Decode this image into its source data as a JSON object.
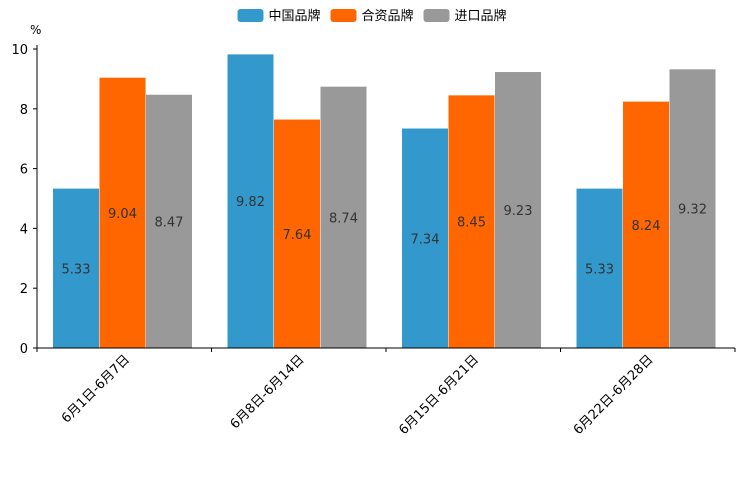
{
  "chart_data": {
    "type": "bar",
    "title": "",
    "xlabel": "",
    "ylabel": "%",
    "ylim": [
      0,
      10
    ],
    "yticks": [
      0,
      2,
      4,
      6,
      8,
      10
    ],
    "grid": false,
    "legend_position": "top-center",
    "categories": [
      "6月1日-6月7日",
      "6月8日-6月14日",
      "6月15日-6月21日",
      "6月22日-6月28日"
    ],
    "series": [
      {
        "name": "中国品牌",
        "color": "#3399CC",
        "values": [
          5.33,
          9.82,
          7.34,
          5.33
        ]
      },
      {
        "name": "合资品牌",
        "color": "#FF6600",
        "values": [
          9.04,
          7.64,
          8.45,
          8.24
        ]
      },
      {
        "name": "进口品牌",
        "color": "#999999",
        "values": [
          8.47,
          8.74,
          9.23,
          9.32
        ]
      }
    ]
  }
}
